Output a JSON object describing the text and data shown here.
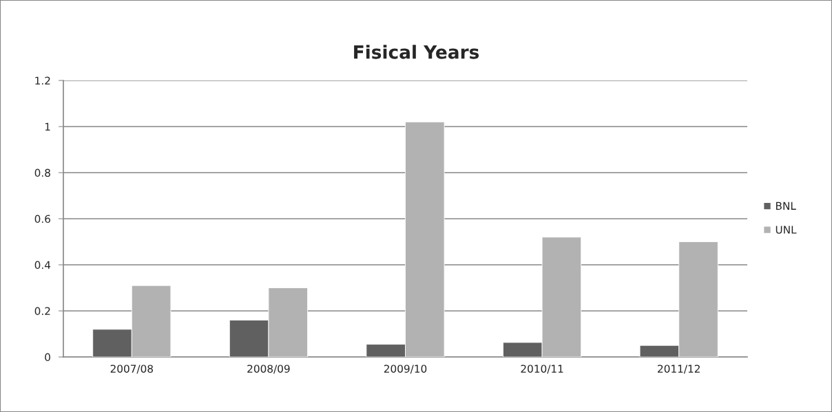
{
  "chart_data": {
    "type": "bar",
    "title": "Fisical Years",
    "categories": [
      "2007/08",
      "2008/09",
      "2009/10",
      "2010/11",
      "2011/12"
    ],
    "series": [
      {
        "name": "BNL",
        "color": "#606060",
        "values": [
          0.12,
          0.16,
          0.055,
          0.063,
          0.05
        ]
      },
      {
        "name": "UNL",
        "color": "#b2b2b2",
        "values": [
          0.31,
          0.3,
          1.02,
          0.52,
          0.5
        ]
      }
    ],
    "ylim": [
      0,
      1.2
    ],
    "yticks": [
      0,
      0.2,
      0.4,
      0.6,
      0.8,
      1,
      1.2
    ],
    "grid": "y",
    "legend": "right"
  }
}
